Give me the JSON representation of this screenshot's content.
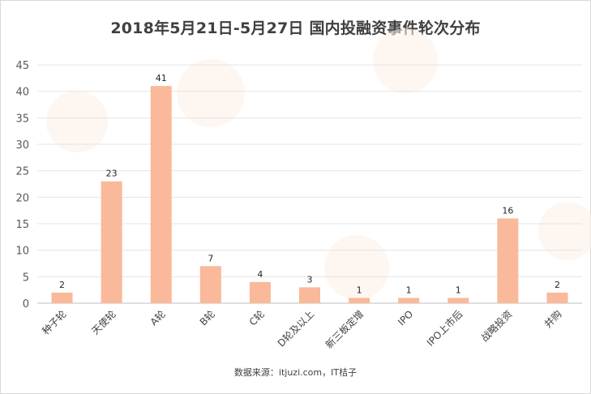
{
  "chart_data": {
    "type": "bar",
    "title": "2018年5月21日-5月27日 国内投融资事件轮次分布",
    "categories": [
      "种子轮",
      "天使轮",
      "A轮",
      "B轮",
      "C轮",
      "D轮及以上",
      "新三板定增",
      "IPO",
      "IPO上市后",
      "战略投资",
      "并购"
    ],
    "values": [
      2,
      23,
      41,
      7,
      4,
      3,
      1,
      1,
      1,
      16,
      2
    ],
    "xlabel": "",
    "ylabel": "",
    "ylim": [
      0,
      45
    ],
    "yticks": [
      0,
      5,
      10,
      15,
      20,
      25,
      30,
      35,
      40,
      45
    ],
    "grid": true,
    "legend": "none",
    "bar_color": "#f9b99a",
    "source": "数据来源：itjuzi.com，IT桔子"
  }
}
